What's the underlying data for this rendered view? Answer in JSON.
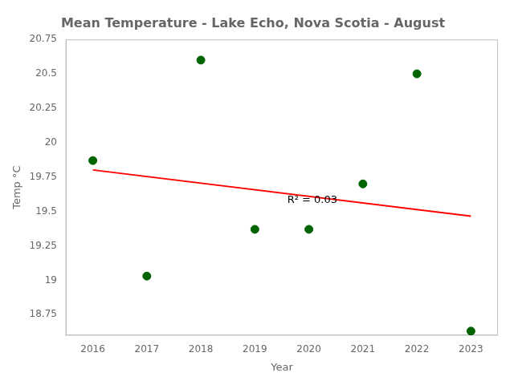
{
  "chart_data": {
    "type": "scatter",
    "title": "Mean Temperature - Lake Echo, Nova Scotia - August",
    "x_label": "Year",
    "y_label": "Temp °C",
    "series": [
      {
        "type": "scatter",
        "color": "#006400",
        "marker": "circle",
        "x": [
          2016,
          2017,
          2018,
          2019,
          2020,
          2021,
          2022,
          2023
        ],
        "values": [
          19.87,
          19.03,
          20.6,
          19.37,
          19.37,
          19.7,
          20.5,
          18.63
        ]
      },
      {
        "type": "line",
        "color": "red",
        "line_style": "solid",
        "x": [
          2016,
          2023
        ],
        "values": [
          19.80167,
          19.46583
        ]
      }
    ],
    "annotations": [
      {
        "text": "R² = 0.03",
        "x": 2019.6,
        "y": 19.56
      }
    ],
    "xlim": [
      2015.5,
      2023.5
    ],
    "xticks": [
      2016,
      2017,
      2018,
      2019,
      2020,
      2021,
      2022,
      2023
    ],
    "ylim": [
      18.6,
      20.75
    ],
    "yticks": [
      18.75,
      19,
      19.25,
      19.5,
      19.75,
      20,
      20.25,
      20.5,
      20.75
    ],
    "grid": false
  }
}
